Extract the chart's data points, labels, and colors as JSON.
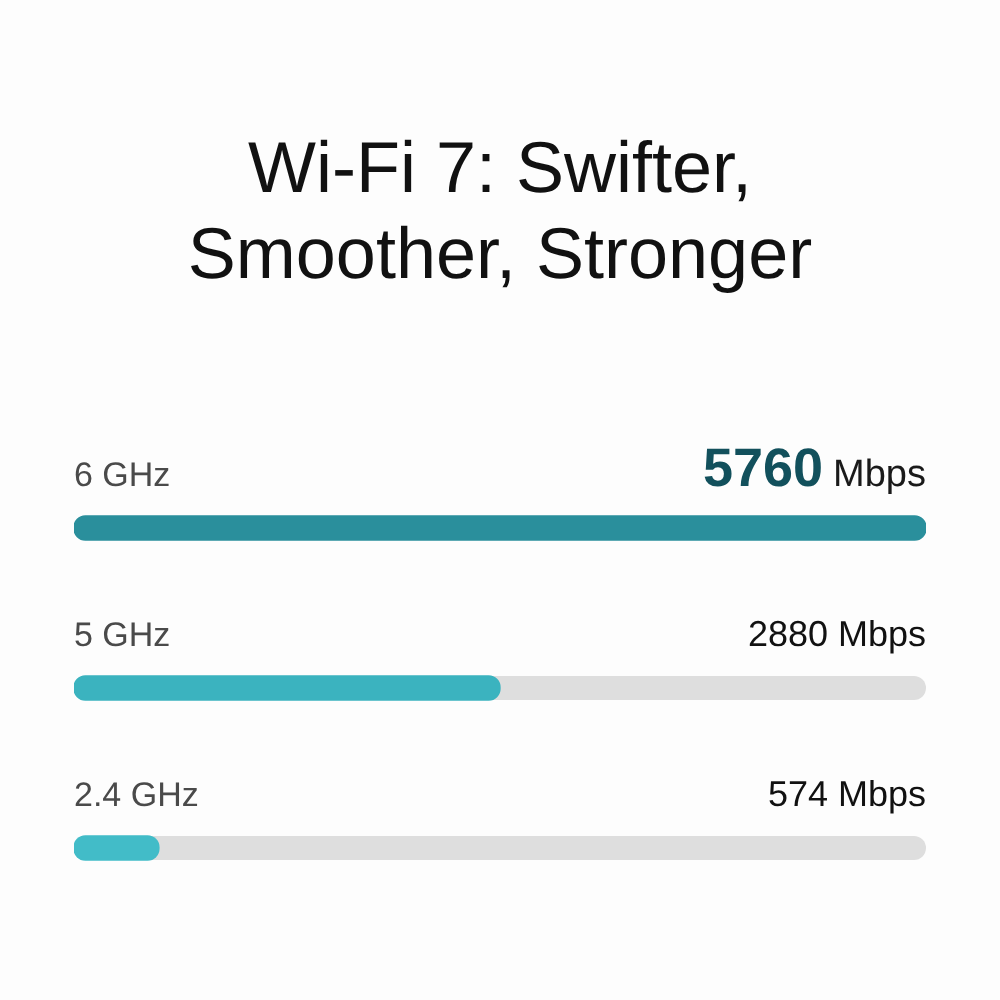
{
  "chart_data": {
    "type": "bar",
    "orientation": "horizontal",
    "title": "Wi-Fi 7: Swifter, Smoother, Stronger",
    "categories": [
      "6 GHz",
      "5 GHz",
      "2.4 GHz"
    ],
    "values": [
      5760,
      2880,
      574
    ],
    "colors": [
      "#2a8f9c",
      "#3bb3bf",
      "#42bcc8"
    ],
    "value_labels": [
      "5760 Mbps",
      "2880 Mbps",
      "574 Mbps"
    ],
    "tick_labels": "y"
  }
}
